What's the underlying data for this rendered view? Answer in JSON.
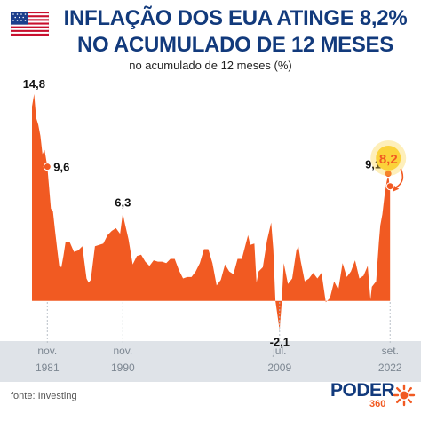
{
  "header": {
    "title_line1": "INFLAÇÃO DOS EUA ATINGE 8,2%",
    "title_line2": "NO ACUMULADO DE 12 MESES",
    "subtitle": "no acumulado de 12 meses (%)",
    "flag_icon": "us-flag-icon"
  },
  "colors": {
    "area": "#f15a22",
    "title": "#123a7c",
    "axis_band": "#dfe3e8",
    "highlight": "#fbd23a"
  },
  "chart_data": {
    "type": "area",
    "title": "INFLAÇÃO DOS EUA ATINGE 8,2% NO ACUMULADO DE 12 MESES",
    "ylabel": "no acumulado de 12 meses (%)",
    "xlabel": "",
    "ylim": [
      -2.5,
      16
    ],
    "x_range": [
      1980.0,
      2022.75
    ],
    "x_ticks": [
      {
        "x": 1981.83,
        "line1": "nov.",
        "line2": "1981"
      },
      {
        "x": 1990.83,
        "line1": "nov.",
        "line2": "1990"
      },
      {
        "x": 2009.5,
        "line1": "jul.",
        "line2": "2009"
      },
      {
        "x": 2022.67,
        "line1": "set.",
        "line2": "2022"
      }
    ],
    "series": [
      {
        "points": [
          [
            1980.0,
            13.9
          ],
          [
            1980.25,
            14.8
          ],
          [
            1980.5,
            13.1
          ],
          [
            1980.75,
            12.6
          ],
          [
            1981.0,
            11.8
          ],
          [
            1981.25,
            10.5
          ],
          [
            1981.5,
            10.8
          ],
          [
            1981.83,
            9.6
          ],
          [
            1982.0,
            8.4
          ],
          [
            1982.25,
            6.6
          ],
          [
            1982.5,
            6.4
          ],
          [
            1982.75,
            5.0
          ],
          [
            1983.0,
            3.7
          ],
          [
            1983.25,
            2.5
          ],
          [
            1983.5,
            2.4
          ],
          [
            1983.75,
            3.2
          ],
          [
            1984.0,
            4.2
          ],
          [
            1984.5,
            4.2
          ],
          [
            1985.0,
            3.5
          ],
          [
            1985.5,
            3.6
          ],
          [
            1986.0,
            3.9
          ],
          [
            1986.5,
            1.6
          ],
          [
            1986.75,
            1.3
          ],
          [
            1987.0,
            1.5
          ],
          [
            1987.5,
            3.9
          ],
          [
            1988.0,
            4.0
          ],
          [
            1988.5,
            4.1
          ],
          [
            1989.0,
            4.7
          ],
          [
            1989.5,
            5.0
          ],
          [
            1990.0,
            5.2
          ],
          [
            1990.5,
            4.8
          ],
          [
            1990.83,
            6.3
          ],
          [
            1991.0,
            5.7
          ],
          [
            1991.5,
            4.4
          ],
          [
            1992.0,
            2.6
          ],
          [
            1992.5,
            3.2
          ],
          [
            1993.0,
            3.3
          ],
          [
            1993.5,
            2.8
          ],
          [
            1994.0,
            2.5
          ],
          [
            1994.5,
            2.9
          ],
          [
            1995.0,
            2.8
          ],
          [
            1995.5,
            2.8
          ],
          [
            1996.0,
            2.7
          ],
          [
            1996.5,
            3.0
          ],
          [
            1997.0,
            3.0
          ],
          [
            1997.5,
            2.2
          ],
          [
            1998.0,
            1.6
          ],
          [
            1998.5,
            1.7
          ],
          [
            1999.0,
            1.7
          ],
          [
            1999.5,
            2.1
          ],
          [
            2000.0,
            2.7
          ],
          [
            2000.5,
            3.7
          ],
          [
            2001.0,
            3.7
          ],
          [
            2001.5,
            2.7
          ],
          [
            2002.0,
            1.1
          ],
          [
            2002.5,
            1.5
          ],
          [
            2003.0,
            2.6
          ],
          [
            2003.5,
            2.1
          ],
          [
            2004.0,
            1.9
          ],
          [
            2004.5,
            3.0
          ],
          [
            2005.0,
            3.0
          ],
          [
            2005.75,
            4.7
          ],
          [
            2006.0,
            4.0
          ],
          [
            2006.5,
            4.1
          ],
          [
            2006.75,
            1.3
          ],
          [
            2007.0,
            2.1
          ],
          [
            2007.5,
            2.4
          ],
          [
            2008.0,
            4.3
          ],
          [
            2008.5,
            5.6
          ],
          [
            2008.75,
            3.7
          ],
          [
            2009.0,
            0.0
          ],
          [
            2009.5,
            -2.1
          ],
          [
            2009.75,
            -0.2
          ],
          [
            2010.0,
            2.7
          ],
          [
            2010.5,
            1.2
          ],
          [
            2011.0,
            1.6
          ],
          [
            2011.5,
            3.6
          ],
          [
            2011.75,
            3.9
          ],
          [
            2012.0,
            2.9
          ],
          [
            2012.5,
            1.4
          ],
          [
            2013.0,
            1.6
          ],
          [
            2013.5,
            2.0
          ],
          [
            2014.0,
            1.6
          ],
          [
            2014.5,
            2.0
          ],
          [
            2015.0,
            -0.1
          ],
          [
            2015.5,
            0.2
          ],
          [
            2016.0,
            1.4
          ],
          [
            2016.5,
            0.8
          ],
          [
            2017.0,
            2.7
          ],
          [
            2017.5,
            1.7
          ],
          [
            2018.0,
            2.1
          ],
          [
            2018.5,
            2.9
          ],
          [
            2019.0,
            1.6
          ],
          [
            2019.5,
            1.8
          ],
          [
            2020.0,
            2.5
          ],
          [
            2020.33,
            0.1
          ],
          [
            2020.5,
            1.0
          ],
          [
            2021.0,
            1.4
          ],
          [
            2021.33,
            4.2
          ],
          [
            2021.5,
            5.4
          ],
          [
            2021.75,
            6.2
          ],
          [
            2022.0,
            7.5
          ],
          [
            2022.25,
            8.5
          ],
          [
            2022.45,
            9.1
          ],
          [
            2022.58,
            8.3
          ],
          [
            2022.67,
            8.2
          ]
        ]
      }
    ],
    "annotations": [
      {
        "x": 1980.25,
        "y": 14.8,
        "label": "14,8",
        "pos": "above",
        "dot": false
      },
      {
        "x": 1981.83,
        "y": 9.6,
        "label": "9,6",
        "pos": "right",
        "dot": true
      },
      {
        "x": 1990.83,
        "y": 6.3,
        "label": "6,3",
        "pos": "above",
        "dot": false
      },
      {
        "x": 2009.5,
        "y": -2.1,
        "label": "-2,1",
        "pos": "below",
        "dot": false
      },
      {
        "x": 2022.45,
        "y": 9.1,
        "label": "9,1",
        "pos": "left",
        "dot": true
      }
    ],
    "highlight": {
      "x": 2022.67,
      "y": 8.2,
      "label": "8,2"
    },
    "grid": false,
    "legend": "none"
  },
  "footer": {
    "source": "fonte: Investing",
    "logo_text": "PODER",
    "logo_number": "360"
  }
}
